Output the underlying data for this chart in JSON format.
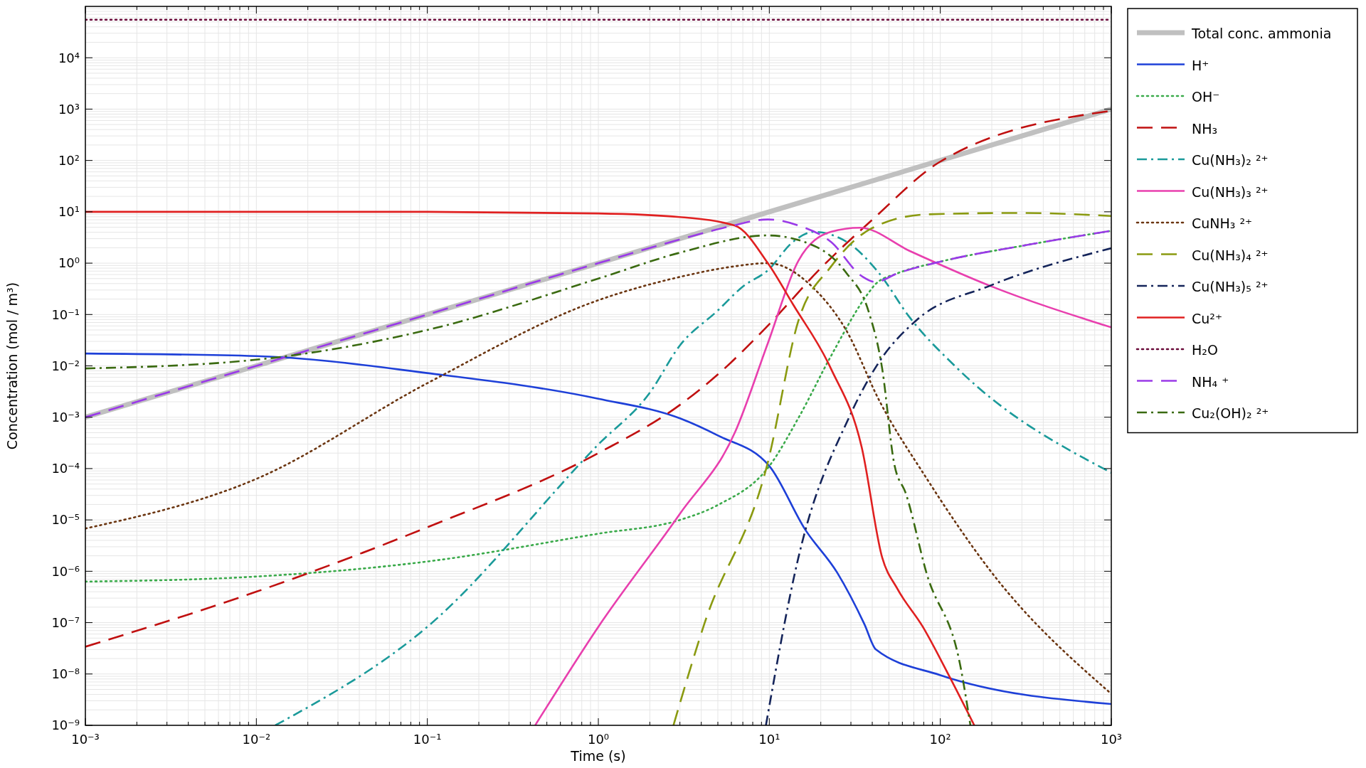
{
  "chart_data": {
    "type": "line",
    "xlabel": "Time (s)",
    "ylabel": "Concentration (mol / m³)",
    "log": "xy",
    "grid": true,
    "legend": "right",
    "xlim": [
      0.001,
      1000
    ],
    "ylim": [
      1e-09,
      100000
    ],
    "xticks": [
      {
        "value": 0.001,
        "label": "10⁻³"
      },
      {
        "value": 0.01,
        "label": "10⁻²"
      },
      {
        "value": 0.1,
        "label": "10⁻¹"
      },
      {
        "value": 1,
        "label": "10⁰"
      },
      {
        "value": 10,
        "label": "10¹"
      },
      {
        "value": 100,
        "label": "10²"
      },
      {
        "value": 1000,
        "label": "10³"
      }
    ],
    "yticks": [
      {
        "value": 1e-09,
        "label": "10⁻⁹"
      },
      {
        "value": 1e-08,
        "label": "10⁻⁸"
      },
      {
        "value": 1e-07,
        "label": "10⁻⁷"
      },
      {
        "value": 1e-06,
        "label": "10⁻⁶"
      },
      {
        "value": 1e-05,
        "label": "10⁻⁵"
      },
      {
        "value": 0.0001,
        "label": "10⁻⁴"
      },
      {
        "value": 0.001,
        "label": "10⁻³"
      },
      {
        "value": 0.01,
        "label": "10⁻²"
      },
      {
        "value": 0.1,
        "label": "10⁻¹"
      },
      {
        "value": 1,
        "label": "10⁰"
      },
      {
        "value": 10,
        "label": "10¹"
      },
      {
        "value": 100,
        "label": "10²"
      },
      {
        "value": 1000,
        "label": "10³"
      },
      {
        "value": 10000,
        "label": "10⁴"
      }
    ],
    "series": [
      {
        "name": "Total conc. ammonia",
        "color": "#c0c0c0",
        "line_style": "solid",
        "x": [
          0.001,
          1000
        ],
        "values": [
          0.001,
          1000
        ]
      },
      {
        "name": "H⁺",
        "color": "#1e40d8",
        "line_style": "solid",
        "x": [
          0.001,
          0.01,
          0.1,
          1,
          3,
          5,
          10,
          16.2,
          25,
          36,
          42,
          100,
          1000
        ],
        "values": [
          0.0174,
          0.0155,
          0.00724,
          0.00229,
          0.00095,
          0.00044,
          0.000112,
          6.5e-06,
          9.3e-07,
          9.3e-08,
          3e-08,
          9.5e-09,
          2.6e-09
        ]
      },
      {
        "name": "OH⁻",
        "color": "#3aaa4a",
        "line_style": "dotted",
        "x": [
          0.001,
          0.01,
          0.1,
          1,
          3,
          5,
          10,
          15,
          23,
          38,
          42,
          56,
          100,
          316,
          1000
        ],
        "values": [
          6.3e-07,
          7.9e-07,
          1.55e-06,
          5.4e-06,
          1e-05,
          1.95e-05,
          0.000112,
          0.00105,
          0.0158,
          0.263,
          0.398,
          0.631,
          1.07,
          2.24,
          4.27
        ]
      },
      {
        "name": "NH₃",
        "color": "#c01010",
        "line_style": "dashed",
        "x": [
          0.001,
          0.01,
          0.1,
          1,
          3,
          5,
          10,
          20,
          40,
          100,
          1000
        ],
        "values": [
          3.4e-08,
          4e-07,
          7.2e-06,
          0.0002,
          0.00174,
          0.0068,
          0.065,
          0.8,
          7,
          95,
          930
        ]
      },
      {
        "name": "Cu(NH₃)₂ ²⁺",
        "color": "#1a9a9a",
        "line_style": "dashdot",
        "x": [
          0.0129,
          0.1,
          1,
          2,
          3,
          5,
          7,
          9.8,
          13.8,
          18.2,
          28.2,
          43.7,
          66,
          126,
          1000
        ],
        "values": [
          1e-09,
          8.3e-08,
          0.000295,
          0.003,
          0.025,
          0.12,
          0.35,
          0.724,
          2.63,
          4.07,
          2.63,
          0.646,
          0.0891,
          0.0089,
          8.3e-05
        ]
      },
      {
        "name": "Cu(NH₃)₃ ²⁺",
        "color": "#e83fae",
        "line_style": "solid",
        "x": [
          0.427,
          1,
          3,
          6.3,
          9.8,
          14.8,
          22.9,
          33.9,
          66,
          195,
          1000
        ],
        "values": [
          1e-09,
          8.3e-08,
          1.32e-05,
          0.00051,
          0.0275,
          1.12,
          4.07,
          4.9,
          1.74,
          0.363,
          0.0562
        ]
      },
      {
        "name": "CuNH₃ ²⁺",
        "color": "#6b3510",
        "line_style": "dotted",
        "x": [
          0.001,
          0.01,
          0.1,
          1,
          3,
          6,
          9.8,
          18.2,
          28.2,
          43.7,
          83,
          195,
          1000
        ],
        "values": [
          6.8e-06,
          6.3e-05,
          0.0046,
          0.19,
          0.54,
          0.85,
          1.0,
          0.324,
          0.049,
          0.00219,
          6.5e-05,
          1.05e-06,
          4.1e-09
        ]
      },
      {
        "name": "Cu(NH₃)₄ ²⁺",
        "color": "#8a9a10",
        "line_style": "dashed",
        "x": [
          2.75,
          4.17,
          9.8,
          14.8,
          22.9,
          39.8,
          83,
          300,
          1000
        ],
        "values": [
          1e-09,
          9.5e-08,
          0.000132,
          0.0759,
          0.851,
          4.79,
          8.9,
          9.5,
          8.3
        ]
      },
      {
        "name": "Cu(NH₃)₅ ²⁺",
        "color": "#14245a",
        "line_style": "dashdot",
        "x": [
          9.55,
          14.8,
          29.5,
          43.7,
          72,
          195,
          1000
        ],
        "values": [
          1e-09,
          1.86e-06,
          0.00105,
          0.0117,
          0.0759,
          0.363,
          1.95
        ]
      },
      {
        "name": "Cu²⁺",
        "color": "#e02020",
        "line_style": "solid",
        "x": [
          0.001,
          0.01,
          0.1,
          1,
          3,
          6.3,
          9.8,
          13.8,
          22.9,
          34.7,
          45.7,
          56,
          79,
          112,
          158
        ],
        "values": [
          10,
          10,
          10,
          9.3,
          7.9,
          5.37,
          1.0,
          0.155,
          0.0089,
          0.00026,
          1.86e-06,
          4.6e-07,
          8.3e-08,
          9.5e-09,
          1e-09
        ]
      },
      {
        "name": "H₂O",
        "color": "#6a0a3a",
        "line_style": "dotted",
        "x": [
          0.001,
          1000
        ],
        "values": [
          55000,
          55000
        ]
      },
      {
        "name": "NH₄ ⁺",
        "color": "#9a3ae8",
        "line_style": "dashed",
        "x": [
          0.001,
          0.01,
          0.1,
          1,
          3,
          5.6,
          9.8,
          14.8,
          22.9,
          34.7,
          41.7,
          56,
          100,
          316,
          1000
        ],
        "values": [
          0.001,
          0.01,
          0.1,
          1,
          2.9,
          5.0,
          7.1,
          5.4,
          2.6,
          0.56,
          0.43,
          0.63,
          1.07,
          2.24,
          4.27
        ]
      },
      {
        "name": "Cu₂(OH)₂ ²⁺",
        "color": "#3a6a10",
        "line_style": "dashdot",
        "x": [
          0.001,
          0.01,
          0.1,
          1,
          3,
          9.8,
          18.2,
          28.2,
          38,
          45.7,
          53.7,
          63,
          83,
          132,
          150
        ],
        "values": [
          0.0089,
          0.0132,
          0.05,
          0.5,
          1.6,
          3.47,
          2.19,
          0.646,
          0.117,
          0.0089,
          0.000126,
          3.2e-05,
          9.3e-07,
          1.26e-08,
          1e-09
        ]
      }
    ]
  }
}
